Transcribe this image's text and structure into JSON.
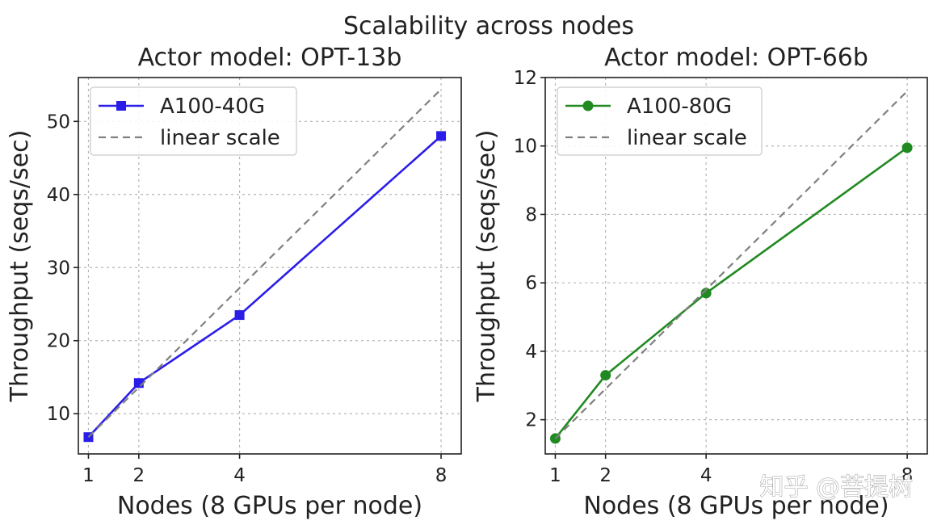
{
  "suptitle": "Scalability across nodes",
  "watermark": "知乎 @菩提树",
  "chart_data": [
    {
      "type": "line",
      "title": "Actor model: OPT-13b",
      "xlabel": "Nodes (8 GPUs per node)",
      "ylabel": "Throughput (seqs/sec)",
      "x": [
        1,
        2,
        4,
        8
      ],
      "x_ticks": [
        "1",
        "2",
        "4",
        "8"
      ],
      "xlim": [
        0.8,
        8.4
      ],
      "ylim": [
        4.5,
        56
      ],
      "y_ticks": [
        "10",
        "20",
        "30",
        "40",
        "50"
      ],
      "y_tick_values": [
        10,
        20,
        30,
        40,
        50
      ],
      "grid": true,
      "legend_position": "top-left",
      "series": [
        {
          "name": "A100-40G",
          "values": [
            6.8,
            14.2,
            23.5,
            48.0
          ],
          "color": "#2b1de8",
          "marker": "square",
          "style": "solid"
        },
        {
          "name": "linear scale",
          "values": [
            6.8,
            13.6,
            27.2,
            54.4
          ],
          "color": "#808080",
          "marker": "none",
          "style": "dashed"
        }
      ]
    },
    {
      "type": "line",
      "title": "Actor model: OPT-66b",
      "xlabel": "Nodes (8 GPUs per node)",
      "ylabel": "Throughput (seqs/sec)",
      "x": [
        1,
        2,
        4,
        8
      ],
      "x_ticks": [
        "1",
        "2",
        "4",
        "8"
      ],
      "xlim": [
        0.8,
        8.4
      ],
      "ylim": [
        1.0,
        12.0
      ],
      "y_ticks": [
        "2",
        "4",
        "6",
        "8",
        "10",
        "12"
      ],
      "y_tick_values": [
        2,
        4,
        6,
        8,
        10,
        12
      ],
      "grid": true,
      "legend_position": "top-left",
      "series": [
        {
          "name": "A100-80G",
          "values": [
            1.45,
            3.3,
            5.7,
            9.95
          ],
          "color": "#208a20",
          "marker": "circle",
          "style": "solid"
        },
        {
          "name": "linear scale",
          "values": [
            1.45,
            2.9,
            5.8,
            11.6
          ],
          "color": "#808080",
          "marker": "none",
          "style": "dashed"
        }
      ]
    }
  ]
}
